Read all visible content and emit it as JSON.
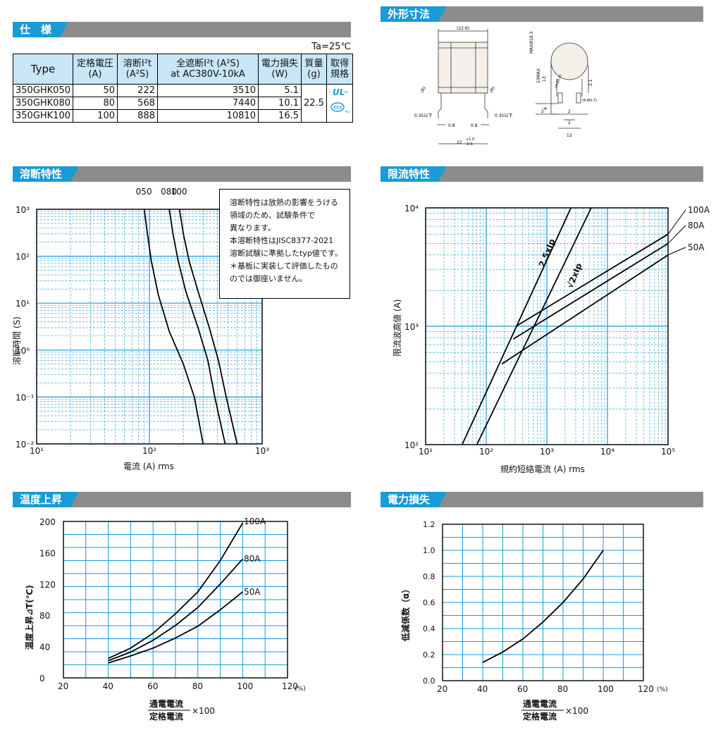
{
  "sections": {
    "spec": "仕　様",
    "dims": "外形寸法",
    "fusing": "溶断特性",
    "limiting": "限流特性",
    "temp": "温度上昇",
    "loss": "電力損失"
  },
  "spec_table": {
    "ta": "Ta=25℃",
    "headers": {
      "type": "Type",
      "voltage": "定格電圧",
      "voltage_unit": "(A)",
      "i2t": "溶断I²t",
      "i2t_unit": "(A²S)",
      "total_i2t": "全遮断I²t (A²S)",
      "total_i2t_cond": "at AC380V-10kA",
      "power": "電力損失",
      "power_unit": "(W)",
      "mass": "質量",
      "mass_unit": "(g)",
      "cert": "取得",
      "cert2": "規格"
    },
    "rows": [
      {
        "type": "350GHK050",
        "rating": "50",
        "i2t": "222",
        "total": "3510",
        "power": "5.1"
      },
      {
        "type": "350GHK080",
        "rating": "80",
        "i2t": "568",
        "total": "7440",
        "power": "10.1"
      },
      {
        "type": "350GHK100",
        "rating": "100",
        "i2t": "888",
        "total": "10810",
        "power": "16.5"
      }
    ],
    "mass": "22.5",
    "cert_marks": [
      "c UL us",
      "CCC ※1"
    ]
  },
  "dimensions": {
    "top": "(22.6)",
    "r_left": "(R)",
    "r_right": "(R)",
    "lead_left": "0.35以下",
    "lead_right": "0.35以下",
    "w1": "0.8",
    "w2": "0.8",
    "len": "22",
    "tol_plus": "+1.0",
    "tol_minus": "-0.6",
    "dia": "MAXØ18.3",
    "height": "23MAX",
    "h13": "13",
    "h2_1": "2.1",
    "h4": "4",
    "hole1": "(4-Ø0.4)",
    "hole2": "(6-Ø0.7)",
    "s2a": "2",
    "s2b": "2",
    "s2c": "2",
    "s12": "12"
  },
  "fusing_note": [
    "溶断特性は放熱の影響をうける",
    "領域のため、試験条件で",
    "異なります。",
    "本溶断特性はJISC8377-2021",
    "溶断試験に準拠したtyp値です。",
    "＊基板に実装して評価したもの",
    "のでは御座いません。"
  ],
  "chart_data": [
    {
      "type": "line",
      "name": "fusing",
      "xlabel": "電流 (A) rms",
      "ylabel": "溶断時間 (S)",
      "xscale": "log",
      "yscale": "log",
      "xlim": [
        10,
        1000
      ],
      "ylim": [
        0.01,
        1000
      ],
      "xticks": [
        "10¹",
        "10²",
        "10³"
      ],
      "yticks": [
        "10³",
        "10²",
        "10¹",
        "10⁰",
        "10⁻¹",
        "10⁻²"
      ],
      "series": [
        {
          "name": "050",
          "x": [
            90,
            96,
            104,
            120,
            150,
            200,
            250,
            300
          ],
          "y": [
            1000,
            300,
            80,
            15,
            2.5,
            0.5,
            0.1,
            0.01
          ]
        },
        {
          "name": "080",
          "x": [
            150,
            162,
            180,
            210,
            270,
            330,
            380,
            470
          ],
          "y": [
            1000,
            300,
            80,
            18,
            3,
            0.6,
            0.1,
            0.01
          ]
        },
        {
          "name": "100",
          "x": [
            185,
            200,
            225,
            270,
            340,
            410,
            480,
            600
          ],
          "y": [
            1000,
            300,
            80,
            18,
            3,
            0.6,
            0.1,
            0.01
          ]
        }
      ]
    },
    {
      "type": "line",
      "name": "limiting",
      "xlabel": "規約短絡電流 (A) rms",
      "ylabel": "限流波高値 (A)",
      "xscale": "log",
      "yscale": "log",
      "xlim": [
        10,
        100000
      ],
      "ylim": [
        100,
        10000
      ],
      "xticks": [
        "10¹",
        "10²",
        "10³",
        "10⁴",
        "10⁵"
      ],
      "yticks": [
        "10⁴",
        "10³",
        "10²"
      ],
      "series": [
        {
          "name": "100A",
          "x": [
            310,
            100000
          ],
          "y": [
            1000,
            6000
          ]
        },
        {
          "name": "80A",
          "x": [
            280,
            100000
          ],
          "y": [
            780,
            5000
          ]
        },
        {
          "name": "50A",
          "x": [
            180,
            100000
          ],
          "y": [
            480,
            4000
          ]
        },
        {
          "name": "2.5xIp",
          "x": [
            40,
            2500
          ],
          "y": [
            100,
            10000
          ]
        },
        {
          "name": "√2xIp",
          "x": [
            70,
            5400
          ],
          "y": [
            100,
            10000
          ]
        }
      ]
    },
    {
      "type": "line",
      "name": "temp",
      "xlabel": "通電電流 / 定格電流 ×100",
      "x_unit": "(%)",
      "ylabel": "温度上昇⊿T(℃)",
      "xlim": [
        20,
        120
      ],
      "ylim": [
        0,
        200
      ],
      "xticks": [
        20,
        40,
        60,
        80,
        100,
        120
      ],
      "yticks": [
        0,
        40,
        80,
        120,
        160,
        200
      ],
      "series": [
        {
          "name": "100A",
          "x": [
            40,
            50,
            60,
            70,
            80,
            90,
            100
          ],
          "y": [
            25,
            38,
            57,
            82,
            110,
            150,
            198
          ]
        },
        {
          "name": "80A",
          "x": [
            40,
            50,
            60,
            70,
            80,
            90,
            100
          ],
          "y": [
            22,
            33,
            48,
            67,
            90,
            120,
            152
          ]
        },
        {
          "name": "50A",
          "x": [
            40,
            50,
            60,
            70,
            80,
            90,
            100
          ],
          "y": [
            19,
            28,
            38,
            51,
            66,
            87,
            110
          ]
        }
      ]
    },
    {
      "type": "line",
      "name": "loss",
      "xlabel": "通電電流 / 定格電流 ×100",
      "x_unit": "(%)",
      "ylabel": "低減係数（α）",
      "xlim": [
        20,
        120
      ],
      "ylim": [
        0,
        1.2
      ],
      "xticks": [
        20,
        40,
        60,
        80,
        100,
        120
      ],
      "yticks": [
        "1.2",
        "1.0",
        "0.8",
        "0.6",
        "0.4",
        "0.2",
        "0.0"
      ],
      "series": [
        {
          "name": "α",
          "x": [
            40,
            50,
            60,
            70,
            80,
            90,
            100
          ],
          "y": [
            0.14,
            0.22,
            0.32,
            0.45,
            0.6,
            0.78,
            1.0
          ]
        }
      ]
    }
  ],
  "axis_labels": {
    "temp_num": "通電電流",
    "temp_den": "定格電流",
    "times100": "×100"
  }
}
